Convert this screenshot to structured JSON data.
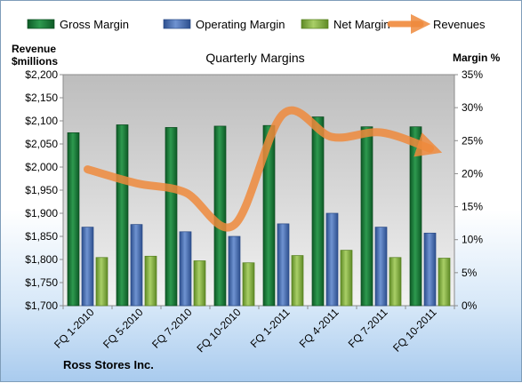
{
  "chart_data": {
    "type": "bar",
    "title": "Quarterly Margins",
    "company": "Ross Stores Inc.",
    "left_axis_label_1": "Revenue",
    "left_axis_label_2": "$millions",
    "right_axis_label": "Margin %",
    "categories": [
      "FQ 1-2010",
      "FQ 5-2010",
      "FQ 7-2010",
      "FQ 10-2010",
      "FQ 1-2011",
      "FQ 4-2011",
      "FQ 7-2011",
      "FQ 10-2011"
    ],
    "left_ticks": [
      "$1,700",
      "$1,750",
      "$1,800",
      "$1,850",
      "$1,900",
      "$1,950",
      "$2,000",
      "$2,050",
      "$2,100",
      "$2,150",
      "$2,200"
    ],
    "right_ticks": [
      "0%",
      "5%",
      "10%",
      "15%",
      "20%",
      "25%",
      "30%",
      "35%"
    ],
    "ylim_left": [
      1700,
      2200
    ],
    "ylim_right": [
      0,
      35
    ],
    "series": [
      {
        "name": "Gross Margin",
        "axis": "right",
        "kind": "bar",
        "color": "#1e7a3c",
        "values": [
          26.2,
          27.4,
          27.0,
          27.2,
          27.3,
          28.6,
          27.1,
          27.1
        ]
      },
      {
        "name": "Operating Margin",
        "axis": "right",
        "kind": "bar",
        "color": "#4a6fb5",
        "values": [
          11.9,
          12.3,
          11.2,
          10.5,
          12.4,
          14.0,
          11.9,
          11.0
        ]
      },
      {
        "name": "Net Margin",
        "axis": "right",
        "kind": "bar",
        "color": "#8db84a",
        "values": [
          7.3,
          7.5,
          6.8,
          6.5,
          7.6,
          8.4,
          7.3,
          7.2
        ]
      },
      {
        "name": "Revenues",
        "axis": "left",
        "kind": "line",
        "color": "#ef8a3c",
        "values": [
          1995,
          1965,
          1945,
          1875,
          2115,
          2065,
          2075,
          2040
        ]
      }
    ],
    "legend_position": "top",
    "grid": false
  }
}
